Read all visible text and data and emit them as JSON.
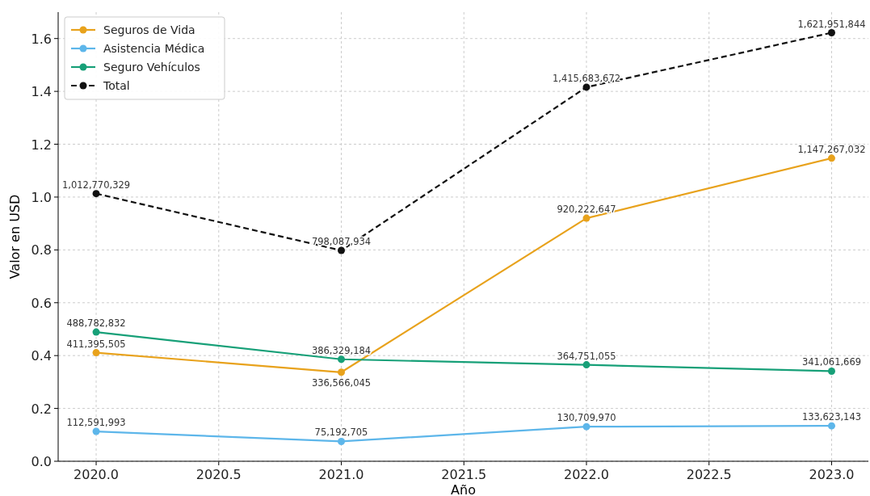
{
  "chart_data": {
    "type": "line",
    "xlabel": "Año",
    "ylabel": "Valor en USD",
    "x": [
      2020,
      2021,
      2022,
      2023
    ],
    "xlim": [
      2019.845,
      2023.15
    ],
    "xticks": [
      {
        "value": 2020,
        "label": "2020.0"
      },
      {
        "value": 2020.5,
        "label": "2020.5"
      },
      {
        "value": 2021,
        "label": "2021.0"
      },
      {
        "value": 2021.5,
        "label": "2021.5"
      },
      {
        "value": 2022,
        "label": "2022.0"
      },
      {
        "value": 2022.5,
        "label": "2022.5"
      },
      {
        "value": 2023,
        "label": "2023.0"
      }
    ],
    "ylim": [
      0,
      1.7
    ],
    "yticks": [
      {
        "value": 0,
        "label": "0.0"
      },
      {
        "value": 0.2,
        "label": "0.2"
      },
      {
        "value": 0.4,
        "label": "0.4"
      },
      {
        "value": 0.6,
        "label": "0.6"
      },
      {
        "value": 0.8,
        "label": "0.8"
      },
      {
        "value": 1,
        "label": "1.0"
      },
      {
        "value": 1.2,
        "label": "1.2"
      },
      {
        "value": 1.4,
        "label": "1.4"
      },
      {
        "value": 1.6,
        "label": "1.6"
      }
    ],
    "grid": true,
    "legend": "top left",
    "marker": "circle",
    "series": [
      {
        "name": "Seguros de Vida",
        "color": "#e8a21c",
        "values": [
          0.411,
          0.337,
          0.92,
          1.147
        ]
      },
      {
        "name": "Asistencia Médica",
        "color": "#5db6ea",
        "values": [
          0.113,
          0.075,
          0.131,
          0.134
        ]
      },
      {
        "name": "Seguro Vehículos",
        "color": "#17a078",
        "values": [
          0.489,
          0.386,
          0.365,
          0.341
        ]
      },
      {
        "name": "Total",
        "color": "#111111",
        "line_style": "dashed",
        "values": [
          1.013,
          0.798,
          1.416,
          1.622
        ]
      }
    ],
    "annotations": [
      {
        "text": "411,395,505",
        "x": 2020,
        "y": 0.411
      },
      {
        "text": "336,566,045",
        "x": 2021,
        "y": 0.337
      },
      {
        "text": "920,222,647",
        "x": 2022,
        "y": 0.92
      },
      {
        "text": "1,147,267,032",
        "x": 2023,
        "y": 1.147
      },
      {
        "text": "112,591,993",
        "x": 2020,
        "y": 0.113
      },
      {
        "text": "75,192,705",
        "x": 2021,
        "y": 0.075
      },
      {
        "text": "130,709,970",
        "x": 2022,
        "y": 0.131
      },
      {
        "text": "133,623,143",
        "x": 2023,
        "y": 0.134
      },
      {
        "text": "488,782,832",
        "x": 2020,
        "y": 0.489
      },
      {
        "text": "386,329,184",
        "x": 2021,
        "y": 0.386
      },
      {
        "text": "364,751,055",
        "x": 2022,
        "y": 0.365
      },
      {
        "text": "341,061,669",
        "x": 2023,
        "y": 0.341
      },
      {
        "text": "1,012,770,329",
        "x": 2020,
        "y": 1.013
      },
      {
        "text": "798,087,934",
        "x": 2021,
        "y": 0.798
      },
      {
        "text": "1,415,683,672",
        "x": 2022,
        "y": 1.416
      },
      {
        "text": "1,621,951,844",
        "x": 2023,
        "y": 1.622
      }
    ]
  }
}
